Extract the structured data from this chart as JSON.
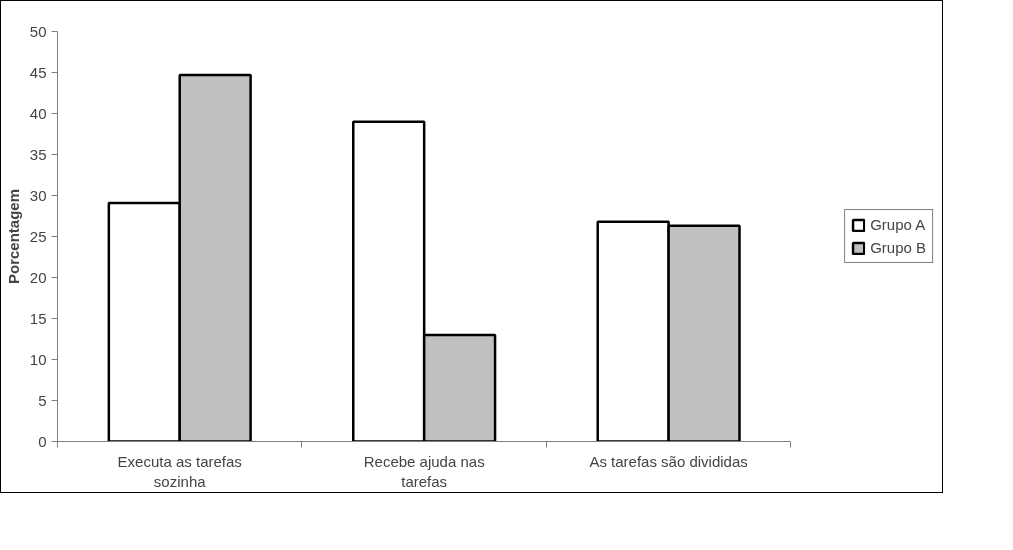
{
  "chart_data": {
    "type": "bar",
    "ylabel": "Porcentagem",
    "categories": [
      "Executa as tarefas\nsozinha",
      "Recebe ajuda nas\ntarefas",
      "As tarefas são divididas"
    ],
    "series": [
      {
        "name": "Grupo A",
        "color": "#ffffff",
        "values": [
          29.1,
          39,
          26.8
        ]
      },
      {
        "name": "Grupo B",
        "color": "#c0c0c0",
        "values": [
          44.7,
          13,
          26.3
        ]
      }
    ],
    "ylim": [
      0,
      50
    ],
    "yticks": [
      0,
      5,
      10,
      15,
      20,
      25,
      30,
      35,
      40,
      45,
      50
    ],
    "grid": false,
    "legend": "right"
  }
}
